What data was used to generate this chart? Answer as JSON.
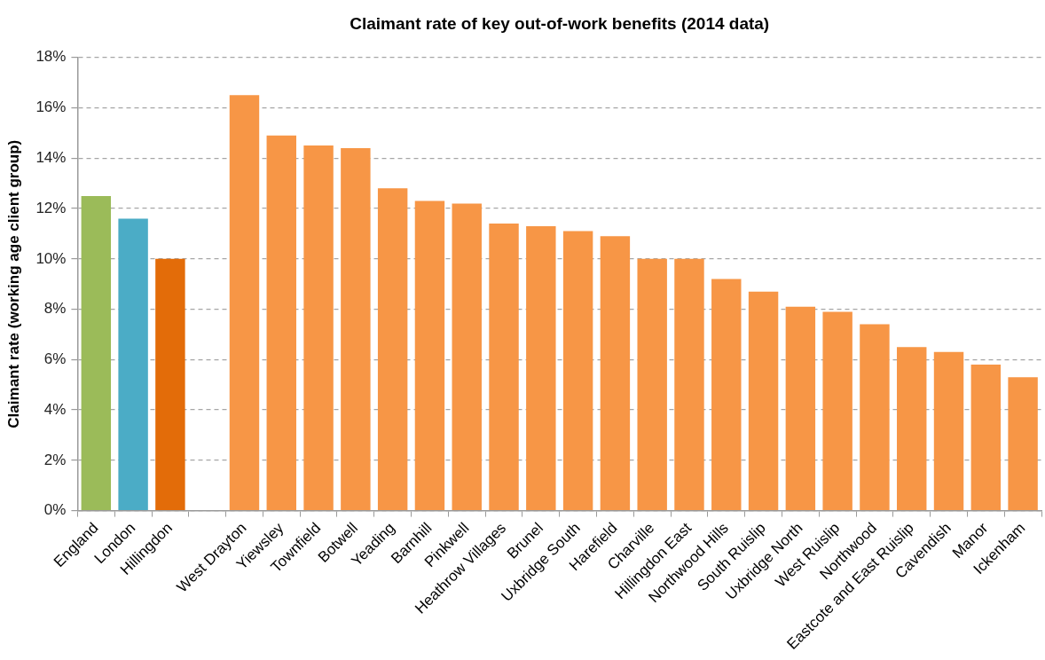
{
  "chart_data": {
    "type": "bar",
    "title": "Claimant rate of key out-of-work benefits (2014 data)",
    "ylabel": "Claimant rate (working age client group)",
    "categories": [
      "England",
      "London",
      "Hillingdon",
      null,
      "West Drayton",
      "Yiewsley",
      "Townfield",
      "Botwell",
      "Yeading",
      "Barnhill",
      "Pinkwell",
      "Heathrow Villages",
      "Brunel",
      "Uxbridge South",
      "Harefield",
      "Charville",
      "Hillingdon East",
      "Northwood Hills",
      "South Ruislip",
      "Uxbridge North",
      "West Ruislip",
      "Northwood",
      "Eastcote and East Ruislip",
      "Cavendish",
      "Manor",
      "Ickenham"
    ],
    "values": [
      12.5,
      11.6,
      10.0,
      null,
      16.5,
      14.9,
      14.5,
      14.4,
      12.8,
      12.3,
      12.2,
      11.4,
      11.3,
      11.1,
      10.9,
      10.0,
      10.0,
      9.2,
      8.7,
      8.1,
      7.9,
      7.4,
      6.5,
      6.3,
      5.8,
      5.3
    ],
    "colors": [
      "#9bbb59",
      "#4bacc6",
      "#e36c09",
      "#f79646",
      "#f79646",
      "#f79646",
      "#f79646",
      "#f79646",
      "#f79646",
      "#f79646",
      "#f79646",
      "#f79646",
      "#f79646",
      "#f79646",
      "#f79646",
      "#f79646",
      "#f79646",
      "#f79646",
      "#f79646",
      "#f79646",
      "#f79646",
      "#f79646",
      "#f79646",
      "#f79646",
      "#f79646",
      "#f79646"
    ],
    "ylim": [
      0,
      18
    ],
    "yticks": [
      {
        "value": 0,
        "label": "0%"
      },
      {
        "value": 2,
        "label": "2%"
      },
      {
        "value": 4,
        "label": "4%"
      },
      {
        "value": 6,
        "label": "6%"
      },
      {
        "value": 8,
        "label": "8%"
      },
      {
        "value": 10,
        "label": "10%"
      },
      {
        "value": 12,
        "label": "12%"
      },
      {
        "value": 14,
        "label": "14%"
      },
      {
        "value": 16,
        "label": "16%"
      },
      {
        "value": 18,
        "label": "18%"
      }
    ],
    "grid": "y"
  }
}
